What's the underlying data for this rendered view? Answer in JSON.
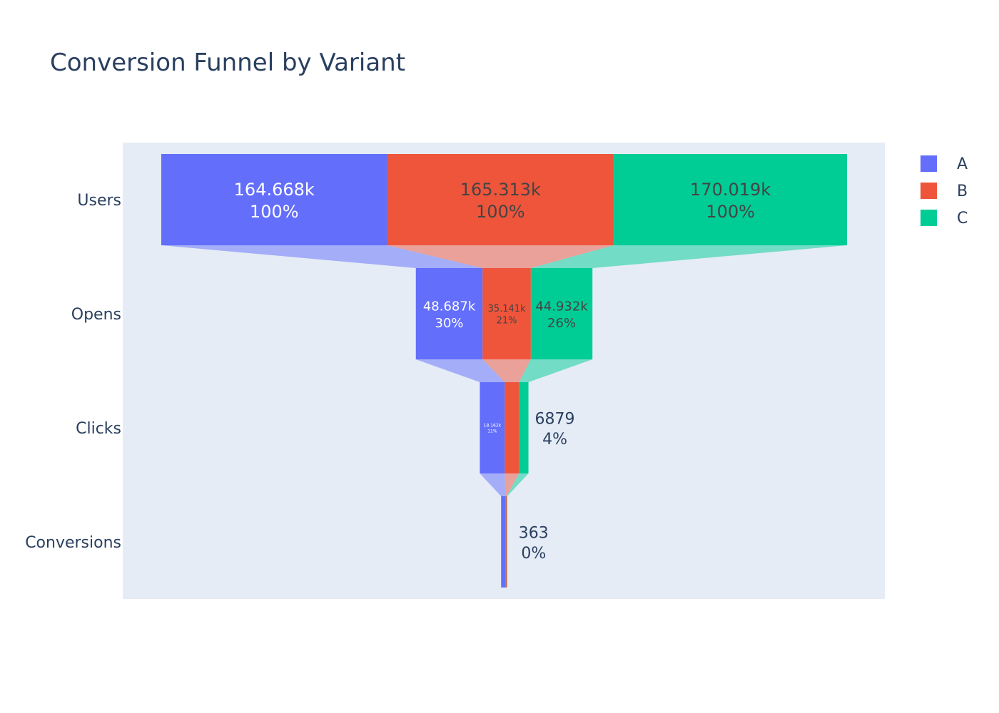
{
  "chart_data": {
    "type": "funnel",
    "title": "Conversion Funnel by Variant",
    "stages": [
      "Users",
      "Opens",
      "Clicks",
      "Conversions"
    ],
    "series": [
      {
        "name": "A",
        "color": "#636efa",
        "values": [
          164668,
          48687,
          18162,
          3100
        ],
        "labels": [
          [
            "164.668k",
            "100%"
          ],
          [
            "48.687k",
            "30%"
          ],
          [
            "18.162k",
            "11%"
          ],
          [
            "",
            ""
          ]
        ]
      },
      {
        "name": "B",
        "color": "#ef553b",
        "values": [
          165313,
          35141,
          10400,
          1000
        ],
        "labels": [
          [
            "165.313k",
            "100%"
          ],
          [
            "35.141k",
            "21%"
          ],
          [
            "",
            ""
          ],
          [
            "",
            ""
          ]
        ]
      },
      {
        "name": "C",
        "color": "#00cc96",
        "values": [
          170019,
          44932,
          6879,
          363
        ],
        "labels": [
          [
            "170.019k",
            "100%"
          ],
          [
            "44.932k",
            "26%"
          ],
          [
            "6879",
            "4%"
          ],
          [
            "363",
            "0%"
          ]
        ]
      }
    ],
    "legend": "top-right",
    "plot_bgcolor": "#e5ecf6"
  }
}
